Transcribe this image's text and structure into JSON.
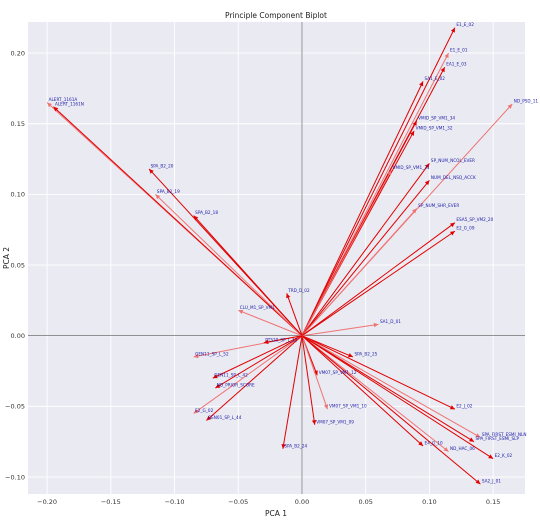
{
  "chart_data": {
    "type": "scatter",
    "title": "Principle Component Biplot",
    "xlabel": "PCA 1",
    "ylabel": "PCA 2",
    "xlim": [
      -0.215,
      0.175
    ],
    "ylim": [
      -0.112,
      0.222
    ],
    "xticks": [
      "−0.20",
      "−0.15",
      "−0.10",
      "−0.05",
      "0.00",
      "0.05",
      "0.10",
      "0.15"
    ],
    "xtick_values": [
      -0.2,
      -0.15,
      -0.1,
      -0.05,
      0.0,
      0.05,
      0.1,
      0.15
    ],
    "yticks": [
      "0.20",
      "0.15",
      "0.10",
      "0.05",
      "0.00",
      "−0.05",
      "−0.10"
    ],
    "ytick_values": [
      0.2,
      0.15,
      0.1,
      0.05,
      0.0,
      -0.05,
      -0.1
    ],
    "grid": true,
    "colors": {
      "background": "#eaeaf2",
      "grid": "#ffffff",
      "arrow_primary": "#e00000",
      "arrow_secondary": "#ef7373",
      "label": "#1a1aa6",
      "zero_line": "#555555"
    },
    "loadings": [
      {
        "name": "ALERT_1161A",
        "x": -0.2,
        "y": 0.165
      },
      {
        "name": "ALERT_1161N",
        "x": -0.195,
        "y": 0.162
      },
      {
        "name": "SPA_B2_20",
        "x": -0.12,
        "y": 0.118
      },
      {
        "name": "SPA_B2_19",
        "x": -0.115,
        "y": 0.1
      },
      {
        "name": "SPA_B2_18",
        "x": -0.085,
        "y": 0.085
      },
      {
        "name": "E1_E_02",
        "x": 0.12,
        "y": 0.218
      },
      {
        "name": "E1_E_01",
        "x": 0.115,
        "y": 0.2
      },
      {
        "name": "EA1_E_03",
        "x": 0.112,
        "y": 0.19
      },
      {
        "name": "SA1_E_02",
        "x": 0.095,
        "y": 0.18
      },
      {
        "name": "ND_PSD_11",
        "x": 0.165,
        "y": 0.164
      },
      {
        "name": "VMID_SP_VM1_34",
        "x": 0.09,
        "y": 0.152
      },
      {
        "name": "VMID_SP_VM1_32",
        "x": 0.088,
        "y": 0.145
      },
      {
        "name": "VMID_SP_VM1_31",
        "x": 0.07,
        "y": 0.117
      },
      {
        "name": "SP_NUM_NCOL_EVER",
        "x": 0.1,
        "y": 0.122
      },
      {
        "name": "NUM_DEL_NSQ_ACCK",
        "x": 0.1,
        "y": 0.11
      },
      {
        "name": "SP_NUM_SHR_EVER",
        "x": 0.09,
        "y": 0.09
      },
      {
        "name": "ESA5_SP_VM2_20",
        "x": 0.12,
        "y": 0.08
      },
      {
        "name": "E2_G_09",
        "x": 0.12,
        "y": 0.074
      },
      {
        "name": "SA1_D_01",
        "x": 0.06,
        "y": 0.008
      },
      {
        "name": "SPA_B2_25",
        "x": 0.04,
        "y": -0.015
      },
      {
        "name": "VM07_SP_VM1_12",
        "x": 0.012,
        "y": -0.028
      },
      {
        "name": "GEN11_SP_L_52",
        "x": -0.085,
        "y": -0.015
      },
      {
        "name": "GEN11_SP_L_42",
        "x": -0.07,
        "y": -0.03
      },
      {
        "name": "ND_PRIOR_SCORE",
        "x": -0.068,
        "y": -0.037
      },
      {
        "name": "E2_G_02",
        "x": -0.085,
        "y": -0.055
      },
      {
        "name": "GEN01_SP_L_44",
        "x": -0.075,
        "y": -0.06
      },
      {
        "name": "E2_J_02",
        "x": 0.12,
        "y": -0.052
      },
      {
        "name": "SPA_FIRST_ESMI_NLN",
        "x": 0.14,
        "y": -0.072
      },
      {
        "name": "SPA_FIRST_ESMI_SLP",
        "x": 0.135,
        "y": -0.075
      },
      {
        "name": "E4_G_10",
        "x": 0.095,
        "y": -0.078
      },
      {
        "name": "ND_HAC_06",
        "x": 0.115,
        "y": -0.082
      },
      {
        "name": "E2_K_02",
        "x": 0.15,
        "y": -0.087
      },
      {
        "name": "SA2_J_01",
        "x": 0.14,
        "y": -0.105
      },
      {
        "name": "VM07_SP_VM1_10",
        "x": 0.02,
        "y": -0.052
      },
      {
        "name": "VM07_SP_VM1_09",
        "x": 0.01,
        "y": -0.063
      },
      {
        "name": "TRD_D_02",
        "x": -0.012,
        "y": 0.03
      },
      {
        "name": "CLU_M1_SP_VM1",
        "x": -0.05,
        "y": 0.018
      },
      {
        "name": "PT520_SP_L_12",
        "x": -0.03,
        "y": -0.005
      },
      {
        "name": "SPA_B2_24",
        "x": -0.015,
        "y": -0.08
      }
    ]
  }
}
